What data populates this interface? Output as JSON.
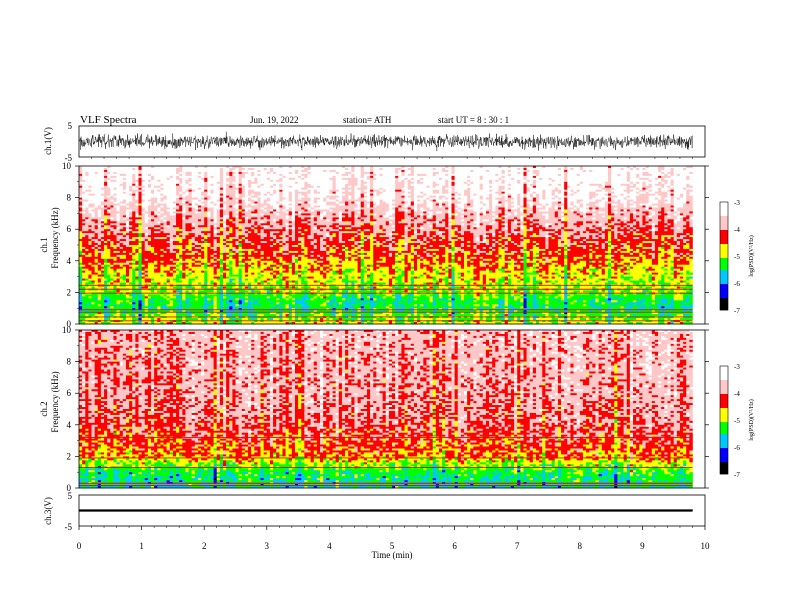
{
  "header": {
    "title": "VLF  Spectra",
    "date": "Jun. 19, 2022",
    "station": "station= ATH",
    "start_ut": "start  UT  =   8 : 30 : 1"
  },
  "chart_data": [
    {
      "type": "line",
      "panel": "ch1-waveform",
      "ylabel": "ch.1(V)",
      "ylim": [
        -5,
        5
      ],
      "yticks": [
        "5",
        "-5"
      ],
      "xlim": [
        0,
        10
      ],
      "description_values": {
        "amplitude_range_v": [
          -2.5,
          2.5
        ]
      },
      "series": [
        {
          "values": []
        }
      ]
    },
    {
      "type": "heatmap",
      "panel": "ch1-spectrogram",
      "ylabel_line1": "ch.1",
      "ylabel_line2": "Frequency  (kHz)",
      "ylim": [
        0,
        10
      ],
      "yticks": [
        "0",
        "2",
        "4",
        "6",
        "8",
        "10"
      ],
      "xlim": [
        0,
        9.8
      ],
      "colorbar": {
        "label": "log(PSD)(V²/Hz)",
        "range": [
          -7,
          -3
        ],
        "ticks": [
          "-3",
          "-4",
          "-5",
          "-6",
          "-7"
        ]
      },
      "lines_khz": [
        0.2,
        0.45,
        0.75,
        0.9,
        1.95,
        2.2,
        2.45
      ],
      "psd_profile": [
        {
          "f_khz": 0.0,
          "log_psd": -4.8
        },
        {
          "f_khz": 0.5,
          "log_psd": -5.1
        },
        {
          "f_khz": 1.0,
          "log_psd": -5.4
        },
        {
          "f_khz": 1.5,
          "log_psd": -5.3
        },
        {
          "f_khz": 2.0,
          "log_psd": -5.0
        },
        {
          "f_khz": 3.0,
          "log_psd": -4.75
        },
        {
          "f_khz": 4.0,
          "log_psd": -4.45
        },
        {
          "f_khz": 5.0,
          "log_psd": -4.2
        },
        {
          "f_khz": 6.5,
          "log_psd": -3.85
        },
        {
          "f_khz": 8.0,
          "log_psd": -3.4
        },
        {
          "f_khz": 10.0,
          "log_psd": -3.2
        }
      ]
    },
    {
      "type": "heatmap",
      "panel": "ch2-spectrogram",
      "ylabel_line1": "ch.2",
      "ylabel_line2": "Frequency  (kHz)",
      "ylim": [
        0,
        10
      ],
      "yticks": [
        "0",
        "2",
        "4",
        "6",
        "8",
        "10"
      ],
      "xlim": [
        0,
        9.8
      ],
      "colorbar": {
        "label": "log(PSD)(V²/Hz)",
        "range": [
          -7,
          -3
        ],
        "ticks": [
          "-3",
          "-4",
          "-5",
          "-6",
          "-7"
        ]
      },
      "lines_khz": [
        0.15,
        0.3,
        1.3,
        1.9,
        3.2
      ],
      "psd_profile": [
        {
          "f_khz": 0.0,
          "log_psd": -5.6
        },
        {
          "f_khz": 0.5,
          "log_psd": -5.5
        },
        {
          "f_khz": 1.0,
          "log_psd": -5.3
        },
        {
          "f_khz": 1.5,
          "log_psd": -5.0
        },
        {
          "f_khz": 2.0,
          "log_psd": -4.5
        },
        {
          "f_khz": 3.0,
          "log_psd": -4.25
        },
        {
          "f_khz": 4.0,
          "log_psd": -4.05
        },
        {
          "f_khz": 6.0,
          "log_psd": -3.9
        },
        {
          "f_khz": 8.0,
          "log_psd": -3.85
        },
        {
          "f_khz": 10.0,
          "log_psd": -3.8
        }
      ]
    },
    {
      "type": "line",
      "panel": "ch3-waveform",
      "ylabel": "ch.3(V)",
      "ylim": [
        -5,
        5
      ],
      "yticks": [
        "5",
        "-5"
      ],
      "xlim": [
        0,
        10
      ],
      "xlabel": "Time  (min)",
      "xticks": [
        "0",
        "1",
        "2",
        "3",
        "4",
        "5",
        "6",
        "7",
        "8",
        "9",
        "10"
      ],
      "description_values": {
        "level_v": 0
      },
      "series": [
        {
          "values": []
        }
      ]
    }
  ],
  "colormap": [
    "#000000",
    "#0000ff",
    "#00c8ff",
    "#00ff00",
    "#ffff00",
    "#ff0000",
    "#ffc8c8",
    "#ffffff"
  ]
}
